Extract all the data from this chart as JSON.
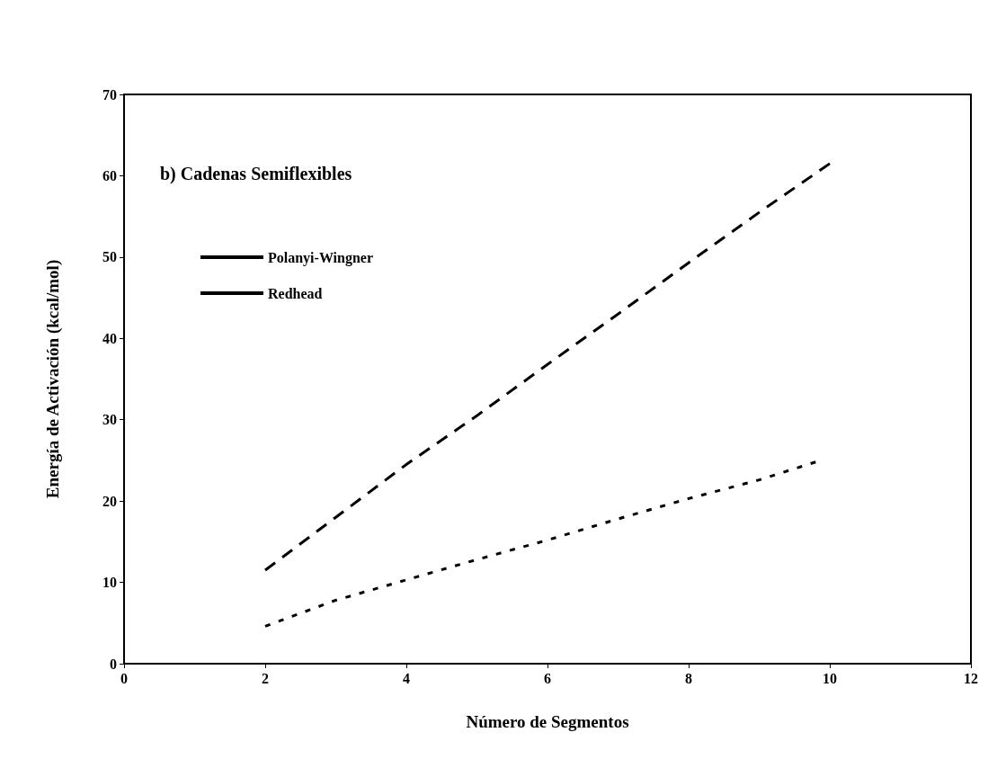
{
  "chart_data": {
    "type": "line",
    "xlabel": "Número de Segmentos",
    "ylabel": "Energía de Activación (kcal/mol)",
    "annotations": [
      "b) Cadenas Semiflexibles"
    ],
    "xlim": [
      0,
      12
    ],
    "xticks": [
      0,
      2,
      4,
      6,
      8,
      10,
      12
    ],
    "ylim": [
      0,
      70
    ],
    "yticks": [
      0,
      10,
      20,
      30,
      40,
      50,
      60,
      70
    ],
    "grid": false,
    "legend": "top left",
    "marker": "none",
    "series": [
      {
        "name": "Polanyi-Wingner",
        "color": "#000000",
        "line_style": "dotted",
        "x": [
          2,
          3,
          4,
          5,
          6,
          7,
          8,
          9,
          9.8
        ],
        "values": [
          4.6,
          7.8,
          10.3,
          12.8,
          15.2,
          17.8,
          20.3,
          22.6,
          24.8
        ]
      },
      {
        "name": "Redhead",
        "color": "#000000",
        "line_style": "dashed",
        "x": [
          2,
          3,
          4,
          5,
          6,
          7,
          8,
          9,
          10
        ],
        "values": [
          11.5,
          18,
          24.5,
          30.5,
          36.8,
          43,
          49.3,
          55.5,
          61.5
        ]
      }
    ]
  }
}
